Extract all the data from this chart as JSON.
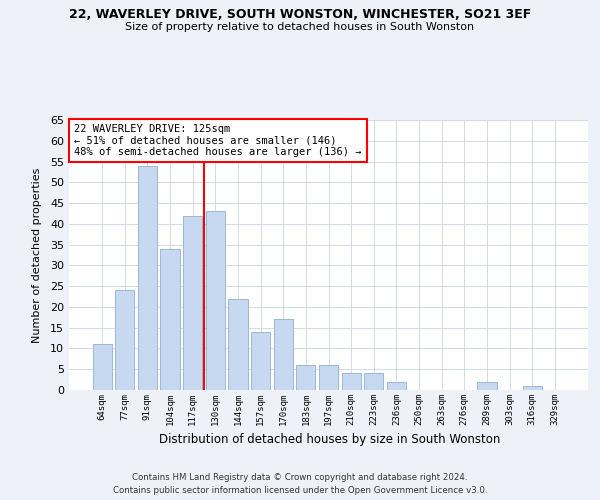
{
  "title": "22, WAVERLEY DRIVE, SOUTH WONSTON, WINCHESTER, SO21 3EF",
  "subtitle": "Size of property relative to detached houses in South Wonston",
  "xlabel": "Distribution of detached houses by size in South Wonston",
  "ylabel": "Number of detached properties",
  "bin_labels": [
    "64sqm",
    "77sqm",
    "91sqm",
    "104sqm",
    "117sqm",
    "130sqm",
    "144sqm",
    "157sqm",
    "170sqm",
    "183sqm",
    "197sqm",
    "210sqm",
    "223sqm",
    "236sqm",
    "250sqm",
    "263sqm",
    "276sqm",
    "289sqm",
    "303sqm",
    "316sqm",
    "329sqm"
  ],
  "bar_values": [
    11,
    24,
    54,
    34,
    42,
    43,
    22,
    14,
    17,
    6,
    6,
    4,
    4,
    2,
    0,
    0,
    0,
    2,
    0,
    1,
    0
  ],
  "bar_color": "#c6d9f0",
  "bar_edge_color": "#9ab8d8",
  "vline_color": "red",
  "vline_pos": 4.5,
  "ylim": [
    0,
    65
  ],
  "yticks": [
    0,
    5,
    10,
    15,
    20,
    25,
    30,
    35,
    40,
    45,
    50,
    55,
    60,
    65
  ],
  "annotation_title": "22 WAVERLEY DRIVE: 125sqm",
  "annotation_line1": "← 51% of detached houses are smaller (146)",
  "annotation_line2": "48% of semi-detached houses are larger (136) →",
  "footer_line1": "Contains HM Land Registry data © Crown copyright and database right 2024.",
  "footer_line2": "Contains public sector information licensed under the Open Government Licence v3.0.",
  "bg_color": "#eef2f8",
  "plot_bg_color": "#ffffff",
  "grid_color": "#ccd5e8"
}
